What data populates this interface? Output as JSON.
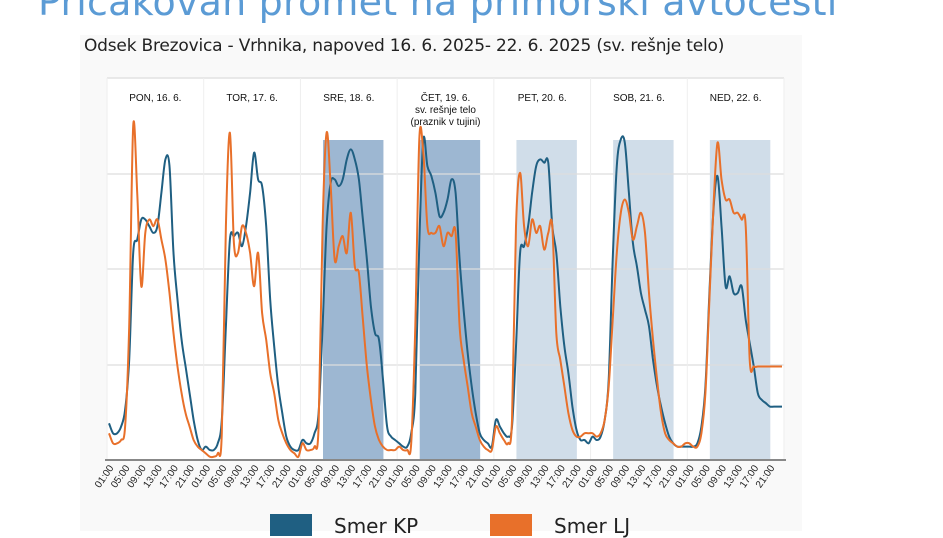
{
  "slide": {
    "title": "Pričakovan promet na primorski avtocesti"
  },
  "chart_data": {
    "type": "line",
    "title": "Odsek Brezovica - Vrhnika, napoved 16. 6. 2025- 22. 6. 2025 (sv. rešnje telo)",
    "xlabel": "",
    "ylabel": "",
    "ylim": [
      0,
      100
    ],
    "grid": true,
    "legend_position": "bottom",
    "days": [
      {
        "label": "PON, 16. 6.",
        "sub": [],
        "band": "none"
      },
      {
        "label": "TOR, 17. 6.",
        "sub": [],
        "band": "none"
      },
      {
        "label": "SRE, 18. 6.",
        "sub": [],
        "band": "dark"
      },
      {
        "label": "ČET, 19. 6.",
        "sub": [
          "sv. rešnje telo",
          "(praznik v tujini)"
        ],
        "band": "dark"
      },
      {
        "label": "PET, 20. 6.",
        "sub": [],
        "band": "light"
      },
      {
        "label": "SOB, 21. 6.",
        "sub": [],
        "band": "light"
      },
      {
        "label": "NED, 22. 6.",
        "sub": [],
        "band": "light"
      }
    ],
    "x_tick_labels": [
      "01:00",
      "05:00",
      "09:00",
      "13:00",
      "17:00",
      "21:00"
    ],
    "hours": [
      0,
      1,
      2,
      3,
      4,
      5,
      6,
      7,
      8,
      9,
      10,
      11,
      12,
      13,
      14,
      15,
      16,
      17,
      18,
      19,
      20,
      21,
      22,
      23
    ],
    "series": [
      {
        "name": "Smer KP",
        "color": "#1f5f82",
        "values": [
          [
            11,
            8,
            8,
            10,
            15,
            30,
            62,
            66,
            72,
            72,
            70,
            68,
            70,
            80,
            90,
            88,
            62,
            48,
            36,
            28,
            20,
            12,
            6,
            3
          ],
          [
            4,
            3,
            3,
            5,
            12,
            40,
            66,
            67,
            68,
            64,
            70,
            80,
            92,
            84,
            82,
            70,
            48,
            34,
            22,
            14,
            7,
            4,
            3,
            3
          ],
          [
            6,
            5,
            5,
            8,
            14,
            40,
            70,
            83,
            84,
            82,
            84,
            90,
            93,
            90,
            84,
            72,
            60,
            46,
            38,
            36,
            24,
            10,
            7,
            6
          ],
          [
            5,
            4,
            4,
            8,
            20,
            65,
            96,
            88,
            85,
            80,
            73,
            74,
            78,
            84,
            80,
            60,
            45,
            32,
            22,
            14,
            8,
            6,
            5,
            4
          ],
          [
            12,
            10,
            8,
            7,
            10,
            34,
            62,
            64,
            70,
            80,
            88,
            90,
            89,
            89,
            70,
            62,
            46,
            34,
            26,
            16,
            9,
            6,
            6,
            5
          ],
          [
            7,
            6,
            7,
            12,
            24,
            60,
            88,
            96,
            95,
            80,
            65,
            58,
            50,
            45,
            40,
            30,
            22,
            16,
            11,
            7,
            5,
            4,
            4,
            4
          ],
          [
            4,
            4,
            5,
            10,
            22,
            50,
            75,
            85,
            70,
            52,
            55,
            50,
            50,
            52,
            42,
            35,
            28,
            20,
            18,
            17,
            16,
            16,
            16,
            16
          ]
        ]
      },
      {
        "name": "Smer LJ",
        "color": "#e8702a",
        "values": [
          [
            8,
            5,
            5,
            6,
            10,
            40,
            100,
            80,
            52,
            68,
            72,
            70,
            72,
            66,
            60,
            50,
            38,
            28,
            20,
            14,
            10,
            6,
            4,
            3
          ],
          [
            2,
            1,
            1,
            2,
            8,
            70,
            98,
            65,
            62,
            70,
            68,
            62,
            52,
            62,
            44,
            36,
            26,
            20,
            12,
            8,
            5,
            3,
            2,
            1
          ],
          [
            5,
            3,
            3,
            4,
            10,
            70,
            98,
            82,
            60,
            64,
            67,
            62,
            74,
            58,
            56,
            42,
            28,
            18,
            10,
            6,
            4,
            3,
            3,
            3
          ],
          [
            4,
            3,
            3,
            5,
            40,
            96,
            92,
            70,
            68,
            68,
            70,
            64,
            68,
            67,
            68,
            40,
            30,
            22,
            14,
            10,
            6,
            4,
            3,
            3
          ],
          [
            10,
            8,
            6,
            5,
            12,
            70,
            86,
            70,
            64,
            72,
            68,
            70,
            63,
            68,
            70,
            38,
            30,
            22,
            14,
            9,
            7,
            7,
            8,
            8
          ],
          [
            8,
            7,
            8,
            12,
            22,
            42,
            62,
            74,
            78,
            74,
            66,
            70,
            74,
            68,
            50,
            36,
            24,
            14,
            8,
            6,
            5,
            4,
            4,
            5
          ],
          [
            5,
            4,
            4,
            8,
            20,
            48,
            76,
            95,
            84,
            78,
            78,
            74,
            74,
            72,
            70,
            30,
            28,
            28,
            28,
            28,
            28,
            28,
            28,
            28
          ]
        ]
      }
    ]
  },
  "legend": [
    {
      "label": "Smer KP",
      "color": "#1f5f82"
    },
    {
      "label": "Smer LJ",
      "color": "#e8702a"
    }
  ],
  "colors": {
    "band_dark": "#9db7d2",
    "band_light": "#d0dde9",
    "grid": "#dddddd",
    "axis": "#888888",
    "title_blue": "#5b9bd5"
  }
}
